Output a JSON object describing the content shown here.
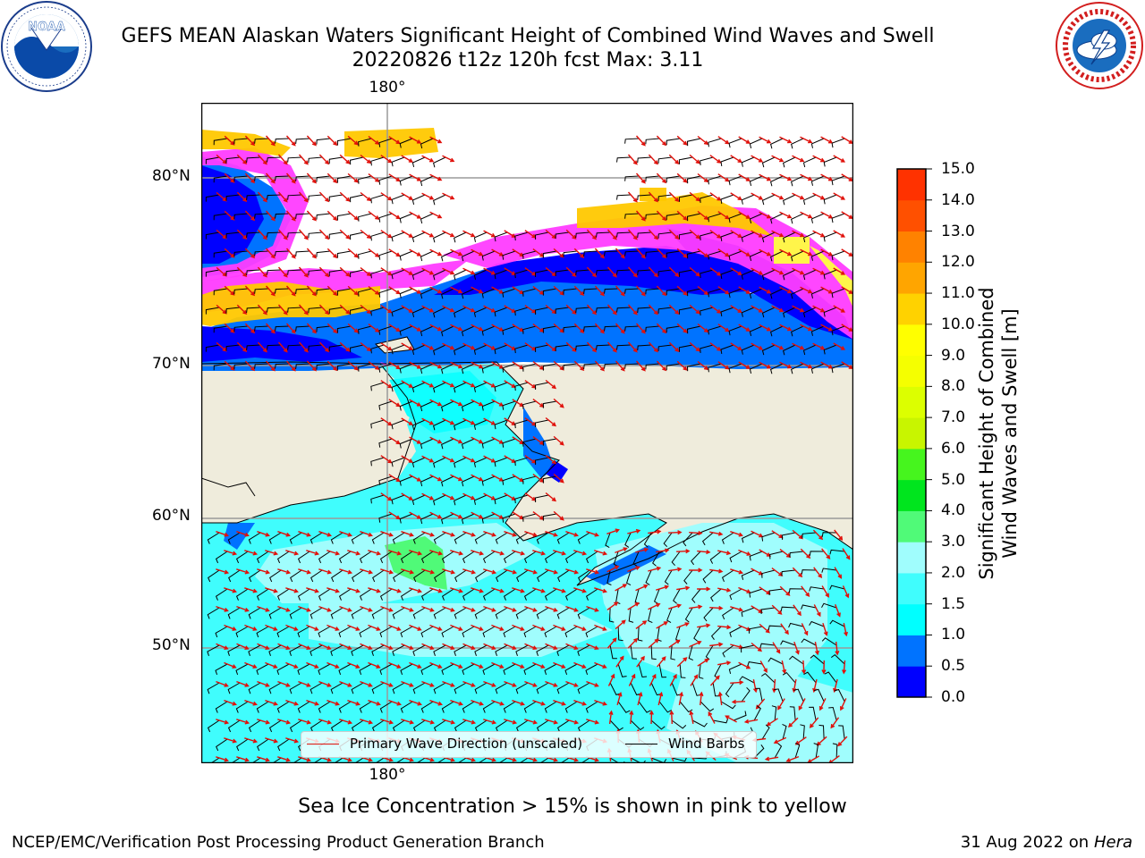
{
  "header": {
    "title_line1": "GEFS MEAN Alaskan Waters Significant Height of Combined Wind Waves and Swell",
    "title_line2": "20220826 t12z 120h fcst   Max: 3.11"
  },
  "logos": {
    "left": {
      "icon": "noaa-logo-icon",
      "text": "NOAA",
      "ring_text": "NATIONAL OCEANIC AND ATMOSPHERIC ADMINISTRATION · U.S. DEPARTMENT OF COMMERCE"
    },
    "right": {
      "icon": "national-weather-service-logo-icon",
      "ring_text": "NATIONAL WEATHER SERVICE"
    }
  },
  "map": {
    "lon_label_top": "180°",
    "lon_label_bottom": "180°",
    "lat_labels": [
      "80°N",
      "70°N",
      "60°N",
      "50°N"
    ],
    "land_color": "#efecdc",
    "ocean_color": "#8ff7f7",
    "ice_colors": [
      "#ff3cff",
      "#ffff40",
      "#ffc800"
    ]
  },
  "legend": {
    "wave_label": "Primary Wave Direction (unscaled)",
    "wave_color": "#e0100a",
    "barb_label": "Wind Barbs",
    "barb_color": "#000000"
  },
  "colorbar": {
    "title_line1": "Significant Height of Combined",
    "title_line2": "Wind Waves and Swell [m]",
    "ticks": [
      "0.0",
      "0.5",
      "1.0",
      "1.5",
      "2.0",
      "3.0",
      "4.0",
      "5.0",
      "6.0",
      "7.0",
      "8.0",
      "9.0",
      "10.0",
      "11.0",
      "12.0",
      "13.0",
      "14.0",
      "15.0"
    ],
    "colors": [
      "#0000ff",
      "#0073ff",
      "#00ffff",
      "#40fdfd",
      "#a0fdfd",
      "#50fa78",
      "#00e51e",
      "#46f51e",
      "#c8f500",
      "#dcff00",
      "#f5ff00",
      "#ffff00",
      "#ffd200",
      "#ffa500",
      "#ff8200",
      "#ff5000",
      "#ff3200"
    ]
  },
  "footer": {
    "sea_ice_note": "Sea Ice Concentration > 15% is shown in pink to yellow",
    "left": "NCEP/EMC/Verification Post Processing Product Generation Branch",
    "right_date": "31 Aug 2022 on",
    "right_host": "Hera"
  }
}
